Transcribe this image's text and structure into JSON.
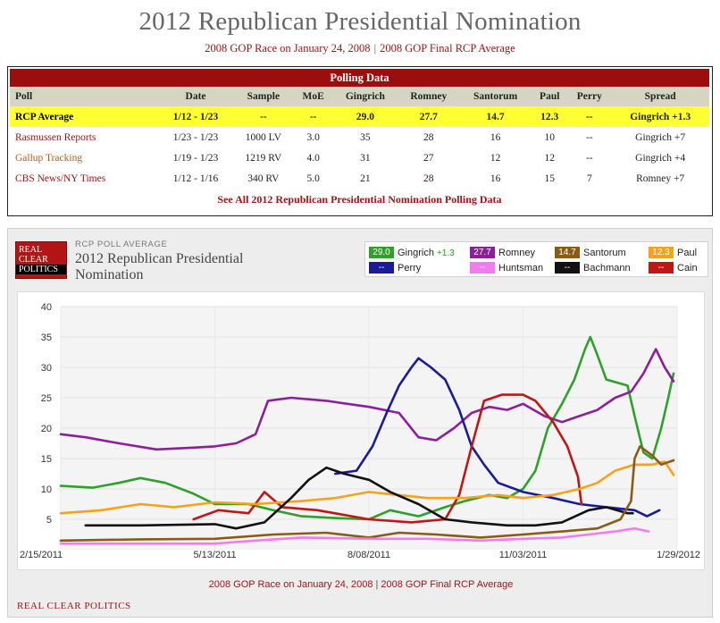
{
  "header": {
    "title": "2012 Republican Presidential Nomination",
    "link1": "2008 GOP Race on January 24, 2008",
    "sep": "|",
    "link2": "2008 GOP Final RCP Average"
  },
  "polling": {
    "heading": "Polling Data",
    "columns": [
      "Poll",
      "Date",
      "Sample",
      "MoE",
      "Gingrich",
      "Romney",
      "Santorum",
      "Paul",
      "Perry",
      "Spread"
    ],
    "rows": [
      [
        "RCP Average",
        "1/12 - 1/23",
        "--",
        "--",
        "29.0",
        "27.7",
        "14.7",
        "12.3",
        "--",
        "Gingrich +1.3"
      ],
      [
        "Rasmussen Reports",
        "1/23 - 1/23",
        "1000 LV",
        "3.0",
        "35",
        "28",
        "16",
        "10",
        "--",
        "Gingrich +7"
      ],
      [
        "Gallup Tracking",
        "1/19 - 1/23",
        "1219 RV",
        "4.0",
        "31",
        "27",
        "12",
        "12",
        "--",
        "Gingrich +4"
      ],
      [
        "CBS News/NY Times",
        "1/12 - 1/16",
        "340 RV",
        "5.0",
        "21",
        "28",
        "16",
        "15",
        "7",
        "Romney +7"
      ]
    ],
    "see_all": "See All 2012 Republican Presidential Nomination Polling Data"
  },
  "panel": {
    "logo": [
      "REAL",
      "CLEAR",
      "POLITICS"
    ],
    "kicker": "RCP POLL AVERAGE",
    "title": "2012 Republican Presidential Nomination",
    "footer_link1": "2008 GOP Race on January 24, 2008",
    "footer_sep": "|",
    "footer_link2": "2008 GOP Final RCP Average",
    "bottom_label": "REAL CLEAR POLITICS"
  },
  "legend": [
    {
      "badge": "29.0",
      "name": "Gingrich",
      "spread": "+1.3",
      "color": "#2ea02c"
    },
    {
      "badge": "27.7",
      "name": "Romney",
      "spread": "",
      "color": "#8d1f9b"
    },
    {
      "badge": "14.7",
      "name": "Santorum",
      "spread": "",
      "color": "#8b5a14"
    },
    {
      "badge": "12.3",
      "name": "Paul",
      "spread": "",
      "color": "#f5a31a"
    },
    {
      "badge": "--",
      "name": "Perry",
      "spread": "",
      "color": "#1b1b9a"
    },
    {
      "badge": "--",
      "name": "Huntsman",
      "spread": "",
      "color": "#f27bf2"
    },
    {
      "badge": "--",
      "name": "Bachmann",
      "spread": "",
      "color": "#111111"
    },
    {
      "badge": "--",
      "name": "Cain",
      "spread": "",
      "color": "#c01616"
    }
  ],
  "chart_data": {
    "type": "line",
    "title": "2012 Republican Presidential Nomination",
    "xlabel": "",
    "ylabel": "",
    "xlim": [
      "2011-02-15",
      "2012-01-29"
    ],
    "ylim": [
      0,
      40
    ],
    "yticks": [
      5,
      10,
      15,
      20,
      25,
      30,
      35,
      40
    ],
    "xticks": [
      "2/15/2011",
      "5/13/2011",
      "8/08/2011",
      "11/03/2011",
      "1/29/2012"
    ],
    "xtick_dates": [
      "2011-02-15",
      "2011-05-13",
      "2011-08-08",
      "2011-11-03",
      "2012-01-29"
    ],
    "grid": true,
    "legend_position": "top-right",
    "series": [
      {
        "name": "Gingrich",
        "color": "#2ea02c",
        "points": [
          [
            "2011-02-15",
            10.5
          ],
          [
            "2011-03-05",
            10.2
          ],
          [
            "2011-03-20",
            11.0
          ],
          [
            "2011-04-01",
            11.8
          ],
          [
            "2011-04-15",
            11.0
          ],
          [
            "2011-05-01",
            9.2
          ],
          [
            "2011-05-13",
            7.5
          ],
          [
            "2011-06-01",
            7.5
          ],
          [
            "2011-06-15",
            6.5
          ],
          [
            "2011-07-01",
            5.5
          ],
          [
            "2011-07-20",
            5.2
          ],
          [
            "2011-08-08",
            5.0
          ],
          [
            "2011-08-20",
            6.5
          ],
          [
            "2011-09-05",
            5.5
          ],
          [
            "2011-09-20",
            7.0
          ],
          [
            "2011-10-01",
            8.0
          ],
          [
            "2011-10-15",
            9.0
          ],
          [
            "2011-10-25",
            8.5
          ],
          [
            "2011-11-03",
            10.0
          ],
          [
            "2011-11-10",
            13.0
          ],
          [
            "2011-11-17",
            20.0
          ],
          [
            "2011-11-25",
            24.0
          ],
          [
            "2011-12-02",
            28.0
          ],
          [
            "2011-12-08",
            33.0
          ],
          [
            "2011-12-11",
            35.0
          ],
          [
            "2011-12-15",
            32.0
          ],
          [
            "2011-12-20",
            28.0
          ],
          [
            "2012-01-01",
            27.0
          ],
          [
            "2012-01-05",
            22.0
          ],
          [
            "2012-01-10",
            16.0
          ],
          [
            "2012-01-15",
            15.0
          ],
          [
            "2012-01-20",
            20.0
          ],
          [
            "2012-01-24",
            25.0
          ],
          [
            "2012-01-27",
            29.0
          ]
        ]
      },
      {
        "name": "Romney",
        "color": "#8d1f9b",
        "points": [
          [
            "2011-02-15",
            19.0
          ],
          [
            "2011-03-01",
            18.5
          ],
          [
            "2011-03-20",
            17.5
          ],
          [
            "2011-04-10",
            16.5
          ],
          [
            "2011-05-01",
            16.8
          ],
          [
            "2011-05-13",
            17.0
          ],
          [
            "2011-05-25",
            17.5
          ],
          [
            "2011-06-05",
            19.0
          ],
          [
            "2011-06-12",
            24.5
          ],
          [
            "2011-06-25",
            25.0
          ],
          [
            "2011-07-15",
            24.5
          ],
          [
            "2011-08-08",
            23.5
          ],
          [
            "2011-08-25",
            22.5
          ],
          [
            "2011-09-05",
            18.5
          ],
          [
            "2011-09-15",
            18.0
          ],
          [
            "2011-09-25",
            20.0
          ],
          [
            "2011-10-05",
            22.5
          ],
          [
            "2011-10-15",
            23.5
          ],
          [
            "2011-10-25",
            23.0
          ],
          [
            "2011-11-03",
            24.0
          ],
          [
            "2011-11-15",
            22.0
          ],
          [
            "2011-11-25",
            21.0
          ],
          [
            "2011-12-05",
            22.0
          ],
          [
            "2011-12-15",
            23.0
          ],
          [
            "2011-12-25",
            25.0
          ],
          [
            "2012-01-03",
            26.0
          ],
          [
            "2012-01-10",
            29.0
          ],
          [
            "2012-01-17",
            33.0
          ],
          [
            "2012-01-22",
            30.0
          ],
          [
            "2012-01-27",
            27.7
          ]
        ]
      },
      {
        "name": "Perry",
        "color": "#1b1b9a",
        "points": [
          [
            "2011-07-20",
            12.5
          ],
          [
            "2011-08-01",
            13.0
          ],
          [
            "2011-08-10",
            17.0
          ],
          [
            "2011-08-18",
            22.5
          ],
          [
            "2011-08-25",
            27.0
          ],
          [
            "2011-09-01",
            30.0
          ],
          [
            "2011-09-05",
            31.5
          ],
          [
            "2011-09-12",
            30.0
          ],
          [
            "2011-09-20",
            28.0
          ],
          [
            "2011-09-28",
            23.0
          ],
          [
            "2011-10-05",
            17.0
          ],
          [
            "2011-10-12",
            14.0
          ],
          [
            "2011-10-20",
            11.0
          ],
          [
            "2011-11-03",
            9.5
          ],
          [
            "2011-11-20",
            8.5
          ],
          [
            "2011-12-05",
            7.5
          ],
          [
            "2011-12-20",
            7.0
          ],
          [
            "2012-01-05",
            6.5
          ],
          [
            "2012-01-12",
            5.5
          ],
          [
            "2012-01-19",
            6.5
          ]
        ]
      },
      {
        "name": "Cain",
        "color": "#c01616",
        "points": [
          [
            "2011-05-01",
            5.0
          ],
          [
            "2011-05-15",
            6.5
          ],
          [
            "2011-06-01",
            6.0
          ],
          [
            "2011-06-10",
            9.5
          ],
          [
            "2011-06-20",
            7.0
          ],
          [
            "2011-07-10",
            6.5
          ],
          [
            "2011-08-08",
            5.0
          ],
          [
            "2011-09-01",
            4.5
          ],
          [
            "2011-09-20",
            5.0
          ],
          [
            "2011-09-28",
            9.0
          ],
          [
            "2011-10-05",
            17.0
          ],
          [
            "2011-10-12",
            24.5
          ],
          [
            "2011-10-22",
            25.5
          ],
          [
            "2011-11-03",
            25.5
          ],
          [
            "2011-11-10",
            24.5
          ],
          [
            "2011-11-20",
            21.0
          ],
          [
            "2011-11-28",
            17.0
          ],
          [
            "2011-12-04",
            12.0
          ],
          [
            "2011-12-06",
            7.5
          ]
        ]
      },
      {
        "name": "Paul",
        "color": "#f5a31a",
        "points": [
          [
            "2011-02-15",
            6.0
          ],
          [
            "2011-03-10",
            6.5
          ],
          [
            "2011-04-01",
            7.5
          ],
          [
            "2011-04-20",
            7.0
          ],
          [
            "2011-05-13",
            7.8
          ],
          [
            "2011-06-05",
            7.5
          ],
          [
            "2011-07-01",
            8.0
          ],
          [
            "2011-07-20",
            8.5
          ],
          [
            "2011-08-08",
            9.5
          ],
          [
            "2011-08-25",
            9.0
          ],
          [
            "2011-09-10",
            8.5
          ],
          [
            "2011-10-01",
            8.5
          ],
          [
            "2011-10-20",
            9.0
          ],
          [
            "2011-11-03",
            8.5
          ],
          [
            "2011-11-20",
            9.0
          ],
          [
            "2011-12-05",
            10.0
          ],
          [
            "2011-12-15",
            11.0
          ],
          [
            "2011-12-25",
            13.0
          ],
          [
            "2012-01-05",
            14.0
          ],
          [
            "2012-01-15",
            14.0
          ],
          [
            "2012-01-22",
            14.5
          ],
          [
            "2012-01-27",
            12.3
          ]
        ]
      },
      {
        "name": "Bachmann",
        "color": "#111111",
        "points": [
          [
            "2011-03-01",
            4.0
          ],
          [
            "2011-04-01",
            4.0
          ],
          [
            "2011-05-13",
            4.2
          ],
          [
            "2011-05-25",
            3.5
          ],
          [
            "2011-06-10",
            4.5
          ],
          [
            "2011-06-25",
            8.5
          ],
          [
            "2011-07-05",
            11.5
          ],
          [
            "2011-07-15",
            13.5
          ],
          [
            "2011-07-25",
            12.5
          ],
          [
            "2011-08-08",
            11.5
          ],
          [
            "2011-08-20",
            9.5
          ],
          [
            "2011-09-05",
            7.5
          ],
          [
            "2011-09-20",
            5.0
          ],
          [
            "2011-10-05",
            4.5
          ],
          [
            "2011-10-25",
            4.0
          ],
          [
            "2011-11-10",
            4.0
          ],
          [
            "2011-11-25",
            4.5
          ],
          [
            "2011-12-10",
            6.5
          ],
          [
            "2011-12-20",
            7.0
          ],
          [
            "2012-01-01",
            6.0
          ],
          [
            "2012-01-04",
            6.0
          ]
        ]
      },
      {
        "name": "Santorum",
        "color": "#8b5a14",
        "points": [
          [
            "2011-02-15",
            1.5
          ],
          [
            "2011-04-01",
            1.7
          ],
          [
            "2011-05-13",
            1.8
          ],
          [
            "2011-06-15",
            2.5
          ],
          [
            "2011-07-15",
            2.8
          ],
          [
            "2011-08-08",
            2.0
          ],
          [
            "2011-08-25",
            2.8
          ],
          [
            "2011-09-15",
            2.5
          ],
          [
            "2011-10-10",
            2.0
          ],
          [
            "2011-11-03",
            2.5
          ],
          [
            "2011-11-25",
            3.0
          ],
          [
            "2011-12-15",
            3.5
          ],
          [
            "2011-12-28",
            5.0
          ],
          [
            "2012-01-03",
            8.0
          ],
          [
            "2012-01-05",
            15.0
          ],
          [
            "2012-01-08",
            17.0
          ],
          [
            "2012-01-15",
            15.5
          ],
          [
            "2012-01-20",
            14.0
          ],
          [
            "2012-01-27",
            14.7
          ]
        ]
      },
      {
        "name": "Huntsman",
        "color": "#f27bf2",
        "points": [
          [
            "2011-02-15",
            1.0
          ],
          [
            "2011-04-01",
            1.0
          ],
          [
            "2011-05-13",
            1.0
          ],
          [
            "2011-06-05",
            1.5
          ],
          [
            "2011-07-01",
            2.0
          ],
          [
            "2011-08-08",
            1.8
          ],
          [
            "2011-09-10",
            1.8
          ],
          [
            "2011-10-10",
            1.5
          ],
          [
            "2011-11-03",
            1.8
          ],
          [
            "2011-11-25",
            2.0
          ],
          [
            "2011-12-10",
            2.5
          ],
          [
            "2011-12-25",
            3.0
          ],
          [
            "2012-01-05",
            3.5
          ],
          [
            "2012-01-13",
            3.0
          ]
        ]
      }
    ]
  }
}
